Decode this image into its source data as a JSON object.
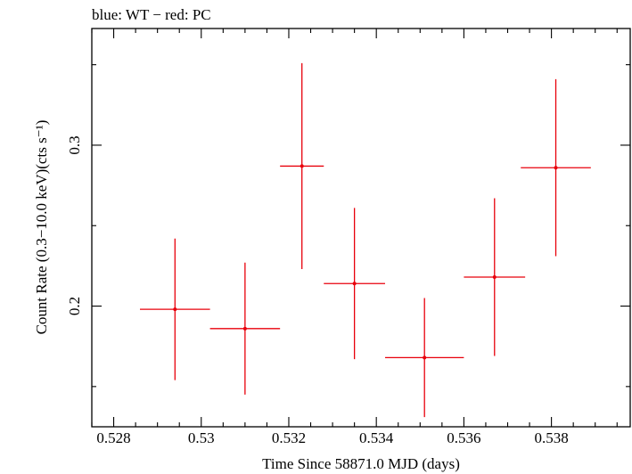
{
  "chart_data": {
    "type": "scatter",
    "title": "blue: WT − red: PC",
    "xlabel": "Time Since 58871.0 MJD (days)",
    "ylabel": "Count Rate (0.3−10.0 keV)(cts s⁻¹)",
    "xlim": [
      0.5275,
      0.5398
    ],
    "ylim": [
      0.125,
      0.3725
    ],
    "x_ticks": [
      0.528,
      0.53,
      0.532,
      0.534,
      0.536,
      0.538
    ],
    "x_tick_labels": [
      "0.528",
      "0.53",
      "0.532",
      "0.534",
      "0.536",
      "0.538"
    ],
    "y_major_ticks": [
      0.2,
      0.3
    ],
    "y_tick_labels": [
      "0.2",
      "0.3"
    ],
    "y_minor_ticks": [
      0.15,
      0.25,
      0.35
    ],
    "x_minor_step": 0.0005,
    "grid": false,
    "series": [
      {
        "color": "#e8000b",
        "points": [
          {
            "x": 0.5294,
            "y": 0.198,
            "xerr": 0.0008,
            "yerr_lo": 0.044,
            "yerr_hi": 0.044
          },
          {
            "x": 0.531,
            "y": 0.186,
            "xerr": 0.0008,
            "yerr_lo": 0.041,
            "yerr_hi": 0.041
          },
          {
            "x": 0.5323,
            "y": 0.287,
            "xerr": 0.0005,
            "yerr_lo": 0.064,
            "yerr_hi": 0.064
          },
          {
            "x": 0.5335,
            "y": 0.214,
            "xerr": 0.0007,
            "yerr_lo": 0.047,
            "yerr_hi": 0.047
          },
          {
            "x": 0.5351,
            "y": 0.168,
            "xerr": 0.0009,
            "yerr_lo": 0.037,
            "yerr_hi": 0.037
          },
          {
            "x": 0.5367,
            "y": 0.218,
            "xerr": 0.0007,
            "yerr_lo": 0.049,
            "yerr_hi": 0.049
          },
          {
            "x": 0.5381,
            "y": 0.286,
            "xerr": 0.0008,
            "yerr_lo": 0.055,
            "yerr_hi": 0.055
          }
        ]
      }
    ]
  }
}
